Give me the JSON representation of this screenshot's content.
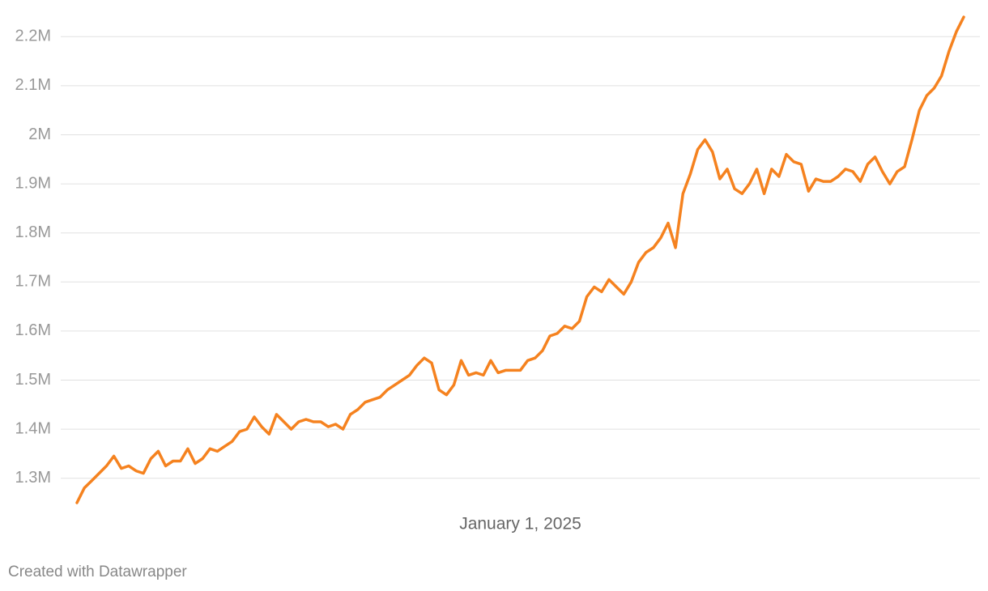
{
  "chart_data": {
    "type": "line",
    "categories": [
      null,
      null,
      null,
      null,
      null,
      null,
      null,
      null,
      null,
      null,
      null,
      null,
      null,
      null,
      null,
      null,
      null,
      null,
      null,
      null,
      null,
      null,
      null,
      null,
      null,
      null,
      null,
      null,
      null,
      null,
      null,
      null,
      null,
      null,
      null,
      null,
      null,
      null,
      null,
      null,
      null,
      null,
      null,
      null,
      null,
      null,
      null,
      null,
      null,
      null,
      null,
      null,
      null,
      null,
      null,
      null,
      null,
      null,
      null,
      null,
      "January 1, 2025",
      null,
      null,
      null,
      null,
      null,
      null,
      null,
      null,
      null,
      null,
      null,
      null,
      null,
      null,
      null,
      null,
      null,
      null,
      null,
      null,
      null,
      null,
      null,
      null,
      null,
      null,
      null,
      null,
      null,
      null,
      null,
      null,
      null,
      null,
      null,
      null,
      null,
      null,
      null,
      null,
      null,
      null,
      null,
      null,
      null,
      null,
      null,
      null,
      null,
      null,
      null,
      null,
      null,
      null,
      null,
      null,
      null,
      null,
      null,
      null
    ],
    "series": [
      {
        "color": "#f5821f",
        "values": [
          1250000,
          1280000,
          1295000,
          1310000,
          1325000,
          1345000,
          1320000,
          1325000,
          1315000,
          1310000,
          1340000,
          1355000,
          1325000,
          1335000,
          1335000,
          1360000,
          1330000,
          1340000,
          1360000,
          1355000,
          1365000,
          1375000,
          1395000,
          1400000,
          1425000,
          1405000,
          1390000,
          1430000,
          1415000,
          1400000,
          1415000,
          1420000,
          1415000,
          1415000,
          1405000,
          1410000,
          1400000,
          1430000,
          1440000,
          1455000,
          1460000,
          1465000,
          1480000,
          1490000,
          1500000,
          1510000,
          1530000,
          1545000,
          1535000,
          1480000,
          1470000,
          1490000,
          1540000,
          1510000,
          1515000,
          1510000,
          1540000,
          1515000,
          1520000,
          1520000,
          1520000,
          1540000,
          1545000,
          1560000,
          1590000,
          1595000,
          1610000,
          1605000,
          1620000,
          1670000,
          1690000,
          1680000,
          1705000,
          1690000,
          1675000,
          1700000,
          1740000,
          1760000,
          1770000,
          1790000,
          1820000,
          1770000,
          1880000,
          1920000,
          1970000,
          1990000,
          1965000,
          1910000,
          1930000,
          1890000,
          1880000,
          1900000,
          1930000,
          1880000,
          1930000,
          1915000,
          1960000,
          1945000,
          1940000,
          1885000,
          1910000,
          1905000,
          1905000,
          1915000,
          1930000,
          1925000,
          1905000,
          1940000,
          1955000,
          1925000,
          1900000,
          1925000,
          1935000,
          1990000,
          2050000,
          2080000,
          2095000,
          2120000,
          2170000,
          2210000,
          2240000
        ]
      }
    ],
    "ylim": [
      1250000,
      2250000
    ],
    "yticks": [
      {
        "value": 1300000,
        "label": "1.3M"
      },
      {
        "value": 1400000,
        "label": "1.4M"
      },
      {
        "value": 1500000,
        "label": "1.5M"
      },
      {
        "value": 1600000,
        "label": "1.6M"
      },
      {
        "value": 1700000,
        "label": "1.7M"
      },
      {
        "value": 1800000,
        "label": "1.8M"
      },
      {
        "value": 1900000,
        "label": "1.9M"
      },
      {
        "value": 2000000,
        "label": "2M"
      },
      {
        "value": 2100000,
        "label": "2.1M"
      },
      {
        "value": 2200000,
        "label": "2.2M"
      }
    ],
    "grid": true,
    "caption": "Created with Datawrapper"
  }
}
